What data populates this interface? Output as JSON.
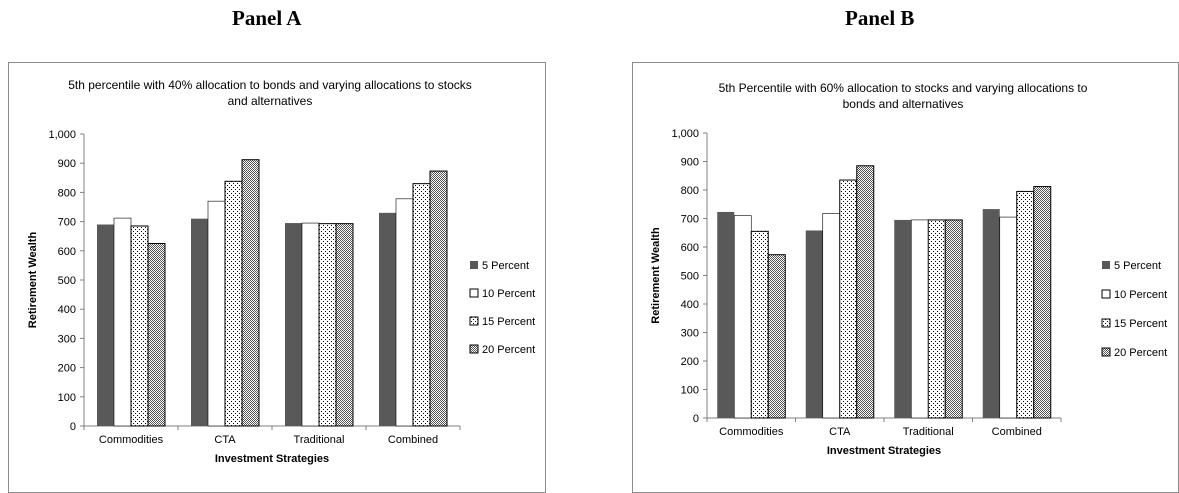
{
  "panels": {
    "a": "Panel A",
    "b": "Panel B"
  },
  "colors": {
    "s5": "#595959",
    "s10": "#ffffff",
    "stroke": "#000000",
    "axis": "#808080"
  },
  "chart_data": [
    {
      "type": "bar",
      "title_lines": [
        "5th percentile with 40% allocation to bonds and varying allocations to stocks",
        "and alternatives"
      ],
      "xlabel": "Investment Strategies",
      "ylabel": "Retirement  Wealth",
      "ylim": [
        0,
        1000
      ],
      "yticks": [
        "0",
        "100",
        "200",
        "300",
        "400",
        "500",
        "600",
        "700",
        "800",
        "900",
        "1,000"
      ],
      "categories": [
        "Commodities",
        "CTA",
        "Traditional",
        "Combined"
      ],
      "series": [
        {
          "name": "5 Percent",
          "pattern": "solid",
          "values": [
            690,
            710,
            695,
            730
          ]
        },
        {
          "name": "10 Percent",
          "pattern": "white",
          "values": [
            712,
            770,
            695,
            778
          ]
        },
        {
          "name": "15 Percent",
          "pattern": "dots",
          "values": [
            685,
            838,
            693,
            830
          ]
        },
        {
          "name": "20 Percent",
          "pattern": "checker",
          "values": [
            625,
            912,
            693,
            873
          ]
        }
      ],
      "grid": false,
      "legend": "right"
    },
    {
      "type": "bar",
      "title_lines": [
        "5th Percentile with  60% allocation to stocks and varying allocations to",
        "bonds and alternatives"
      ],
      "xlabel": "Investment Strategies",
      "ylabel": "Retirement Wealth",
      "ylim": [
        0,
        1000
      ],
      "yticks": [
        "0",
        "100",
        "200",
        "300",
        "400",
        "500",
        "600",
        "700",
        "800",
        "900",
        "1,000"
      ],
      "categories": [
        "Commodities",
        "CTA",
        "Traditional",
        "Combined"
      ],
      "series": [
        {
          "name": "5 Percent",
          "pattern": "solid",
          "values": [
            723,
            658,
            695,
            733
          ]
        },
        {
          "name": "10 Percent",
          "pattern": "white",
          "values": [
            710,
            718,
            695,
            705
          ]
        },
        {
          "name": "15 Percent",
          "pattern": "dots",
          "values": [
            655,
            835,
            695,
            795
          ]
        },
        {
          "name": "20 Percent",
          "pattern": "checker",
          "values": [
            573,
            885,
            695,
            812
          ]
        }
      ],
      "grid": false,
      "legend": "right"
    }
  ]
}
